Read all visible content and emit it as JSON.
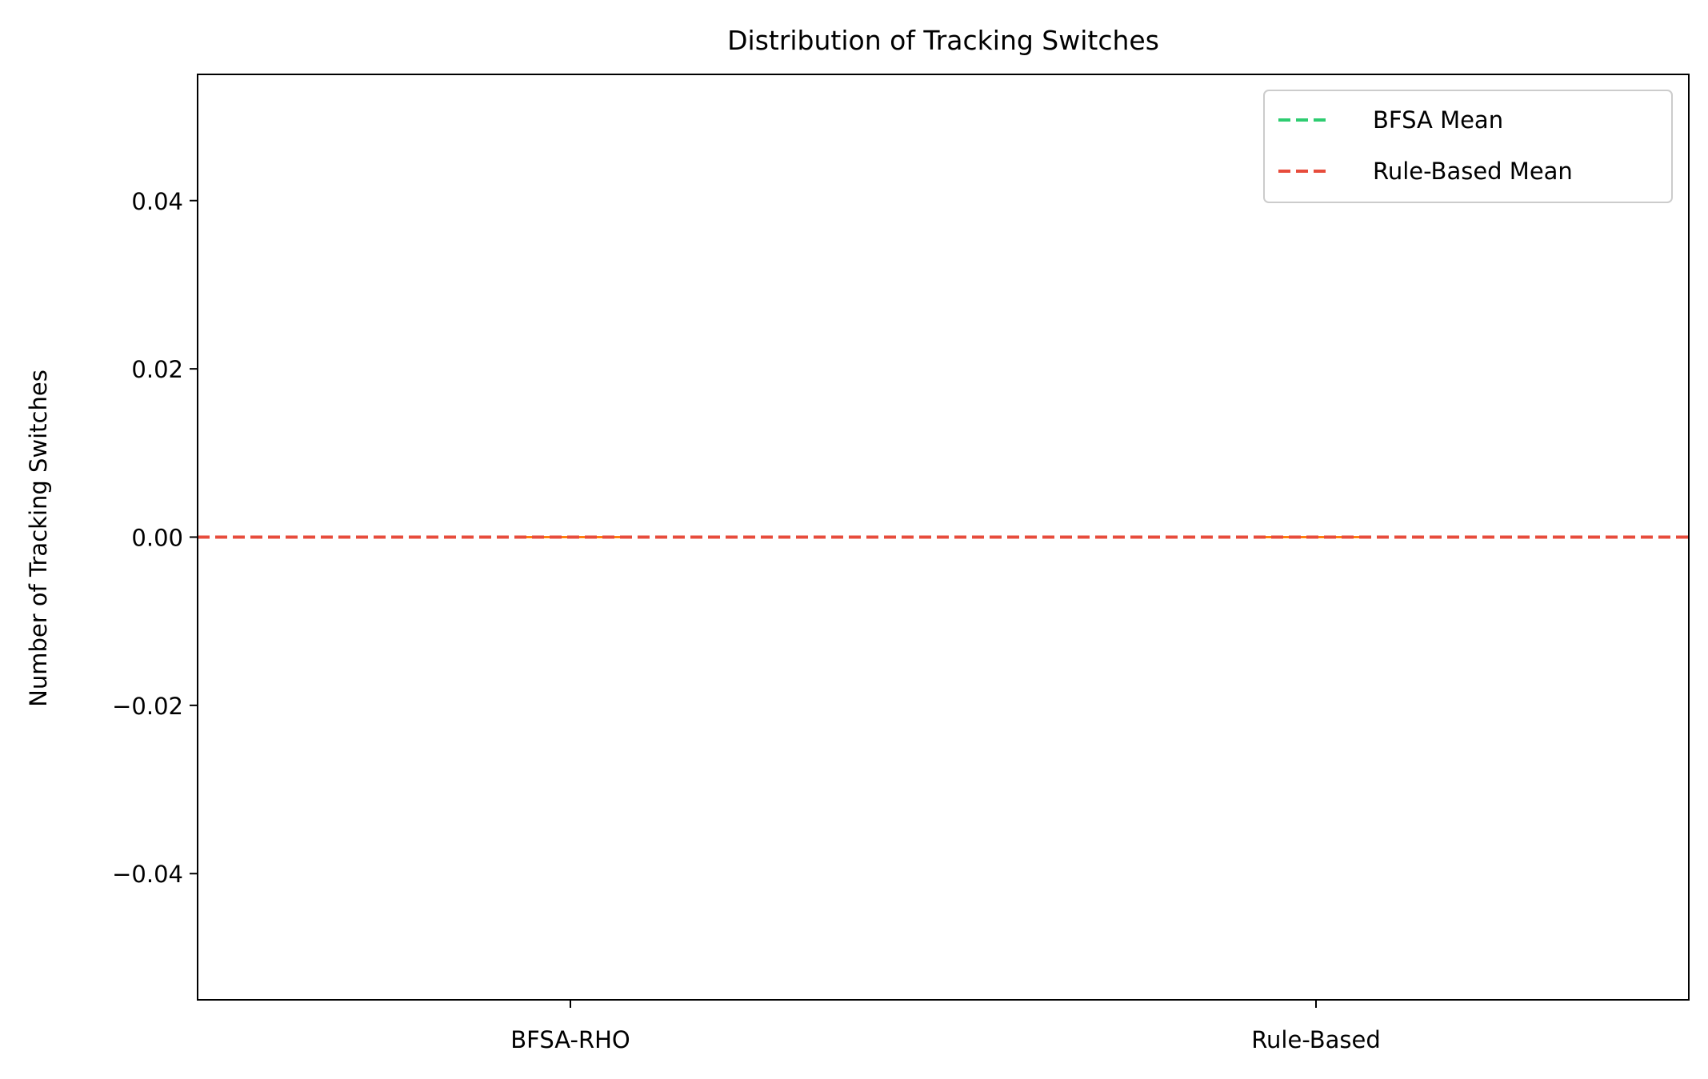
{
  "chart_data": {
    "type": "box",
    "title": "Distribution of Tracking Switches",
    "xlabel": "",
    "ylabel": "Number of Tracking Switches",
    "categories": [
      "BFSA-RHO",
      "Rule-Based"
    ],
    "boxes": [
      {
        "category": "BFSA-RHO",
        "min": 0,
        "q1": 0,
        "median": 0,
        "q3": 0,
        "max": 0
      },
      {
        "category": "Rule-Based",
        "min": 0,
        "q1": 0,
        "median": 0,
        "q3": 0,
        "max": 0
      }
    ],
    "ylim": [
      -0.055,
      0.055
    ],
    "yticks": [
      -0.04,
      -0.02,
      0.0,
      0.02,
      0.04
    ],
    "ytick_labels": [
      "−0.04",
      "−0.02",
      "0.00",
      "0.02",
      "0.04"
    ],
    "reference_lines": [
      {
        "name": "BFSA Mean",
        "y": 0.0,
        "color": "#2ecc71",
        "style": "dashed"
      },
      {
        "name": "Rule-Based Mean",
        "y": 0.0,
        "color": "#e74c3c",
        "style": "dashed"
      }
    ],
    "median_color": "#ff7f0e",
    "grid": false,
    "legend": {
      "placement": "top-right",
      "entries": [
        {
          "label": "BFSA Mean",
          "color": "#2ecc71"
        },
        {
          "label": "Rule-Based Mean",
          "color": "#e74c3c"
        }
      ]
    }
  }
}
